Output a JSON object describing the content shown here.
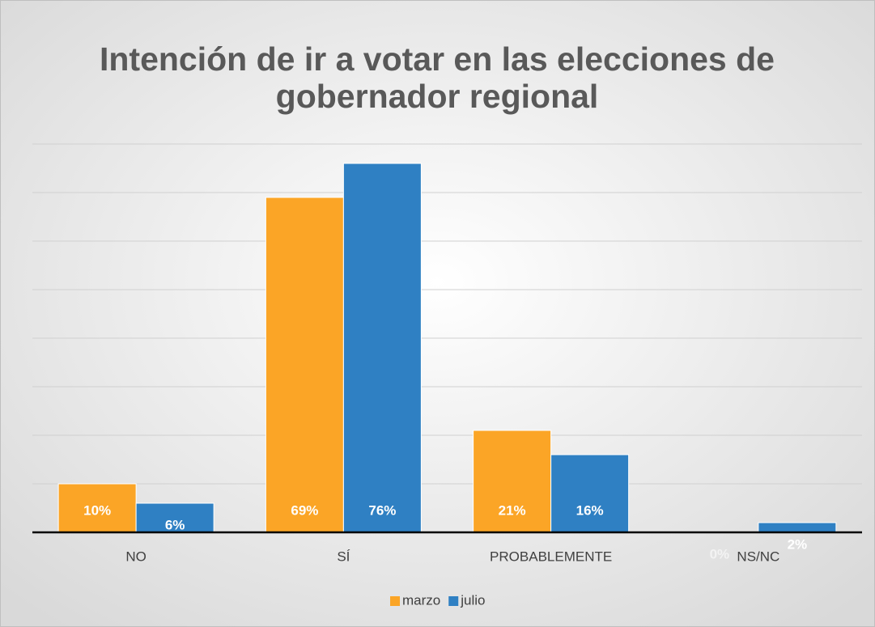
{
  "chart_data": {
    "type": "bar",
    "title": [
      "Intención de ir a votar en las elecciones de",
      "gobernador regional"
    ],
    "categories": [
      "NO",
      "SÍ",
      "PROBABLEMENTE",
      "NS/NC"
    ],
    "series": [
      {
        "name": "marzo",
        "color": "#FBA526",
        "values": [
          10,
          69,
          21,
          0
        ],
        "value_labels": [
          "10%",
          "69%",
          "21%",
          "0%"
        ]
      },
      {
        "name": "julio",
        "color": "#2F80C3",
        "values": [
          6,
          76,
          16,
          2
        ],
        "value_labels": [
          "6%",
          "76%",
          "16%",
          "2%"
        ]
      }
    ],
    "ylim": [
      0,
      80
    ],
    "yticks": [
      0,
      10,
      20,
      30,
      40,
      50,
      60,
      70,
      80
    ],
    "grid": true,
    "legend": "bottom"
  }
}
